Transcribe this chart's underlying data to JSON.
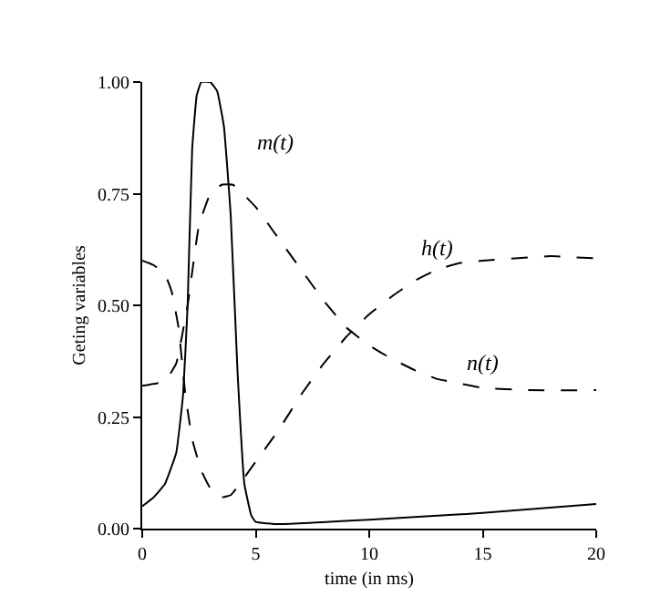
{
  "chart_data": {
    "type": "line",
    "xlabel": "time (in ms)",
    "ylabel": "Geting variables",
    "xlim": [
      0,
      20
    ],
    "ylim": [
      0,
      1
    ],
    "xticks": [
      0,
      5,
      10,
      15,
      20
    ],
    "yticks": [
      {
        "value": 0,
        "label": "0.00"
      },
      {
        "value": 0.25,
        "label": "0.25"
      },
      {
        "value": 0.5,
        "label": "0.50"
      },
      {
        "value": 0.75,
        "label": "0.75"
      },
      {
        "value": 1,
        "label": "1.00"
      }
    ],
    "grid": false,
    "legend": false,
    "marker": "none",
    "series": [
      {
        "name": "m(t)",
        "color": "#000000",
        "line_style": "solid",
        "x": [
          0,
          0.5,
          1,
          1.5,
          1.8,
          2,
          2.2,
          2.4,
          2.6,
          3,
          3.3,
          3.6,
          3.9,
          4.2,
          4.5,
          4.8,
          5,
          6,
          10,
          15,
          20
        ],
        "values": [
          0.05,
          0.07,
          0.1,
          0.17,
          0.3,
          0.5,
          0.85,
          0.97,
          1.0,
          1.0,
          0.98,
          0.9,
          0.7,
          0.35,
          0.1,
          0.03,
          0.015,
          0.01,
          0.02,
          0.035,
          0.055
        ]
      },
      {
        "name": "h(t)",
        "color": "#000000",
        "line_style": "dashed",
        "x": [
          0,
          0.5,
          1,
          1.3,
          1.6,
          1.9,
          2.2,
          2.6,
          3,
          3.5,
          3.9,
          4.3,
          5,
          6,
          7,
          8,
          9,
          10,
          11,
          12,
          13,
          14,
          15,
          17,
          18,
          20
        ],
        "values": [
          0.6,
          0.59,
          0.57,
          0.53,
          0.45,
          0.3,
          0.2,
          0.13,
          0.09,
          0.07,
          0.075,
          0.1,
          0.15,
          0.22,
          0.3,
          0.37,
          0.43,
          0.48,
          0.52,
          0.555,
          0.58,
          0.595,
          0.6,
          0.607,
          0.61,
          0.605
        ]
      },
      {
        "name": "n(t)",
        "color": "#000000",
        "line_style": "dashed",
        "x": [
          0,
          1,
          1.5,
          2,
          2.5,
          3,
          3.5,
          4,
          5,
          6,
          7,
          8,
          9,
          10,
          11,
          12,
          13,
          14,
          15,
          17,
          20
        ],
        "values": [
          0.32,
          0.33,
          0.37,
          0.5,
          0.68,
          0.75,
          0.77,
          0.77,
          0.72,
          0.65,
          0.58,
          0.51,
          0.45,
          0.41,
          0.38,
          0.355,
          0.335,
          0.325,
          0.315,
          0.31,
          0.31
        ]
      }
    ]
  }
}
